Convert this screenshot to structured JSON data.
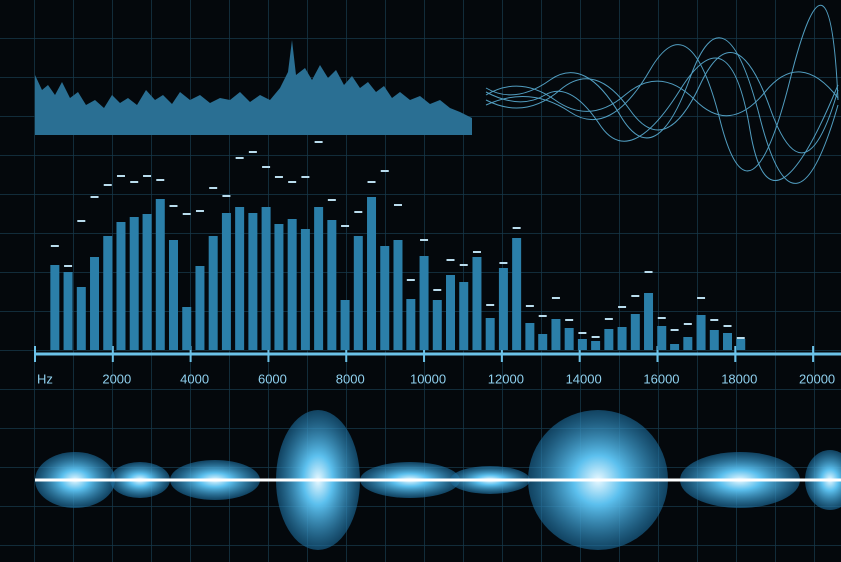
{
  "chart_data": {
    "type": "bar",
    "x": [
      510,
      850,
      1190,
      1530,
      1870,
      2210,
      2550,
      2880,
      3220,
      3560,
      3900,
      4240,
      4580,
      4920,
      5260,
      5600,
      5940,
      6270,
      6610,
      6950,
      7290,
      7630,
      7970,
      8310,
      8650,
      8990,
      9330,
      9660,
      10000,
      10340,
      10680,
      11020,
      11360,
      11700,
      12040,
      12380,
      12720,
      13050,
      13390,
      13730,
      14070,
      14410,
      14750,
      15090,
      15430,
      15770,
      16110,
      16440,
      16780,
      17120,
      17460,
      17800,
      18140
    ],
    "values": [
      85,
      78,
      63,
      93,
      114,
      128,
      133,
      136,
      151,
      110,
      43,
      84,
      114,
      137,
      143,
      137,
      143,
      126,
      131,
      121,
      143,
      130,
      50,
      114,
      153,
      104,
      110,
      51,
      94,
      50,
      75,
      68,
      93,
      32,
      82,
      112,
      27,
      16,
      31,
      22,
      11,
      9,
      21,
      23,
      36,
      57,
      24,
      6,
      13,
      35,
      20,
      17,
      11
    ],
    "peak_values": [
      104,
      84,
      129,
      153,
      165,
      174,
      168,
      174,
      170,
      144,
      136,
      139,
      162,
      154,
      192,
      198,
      183,
      173,
      168,
      173,
      208,
      150,
      124,
      138,
      168,
      179,
      145,
      70,
      110,
      60,
      90,
      85,
      98,
      45,
      87,
      122,
      44,
      34,
      52,
      30,
      17,
      13,
      31,
      43,
      54,
      78,
      32,
      20,
      26,
      52,
      30,
      24,
      12
    ],
    "color": "#2b7fa9",
    "peak_color": "#b9dced",
    "xlim": [
      0,
      20640
    ],
    "xticks": [
      {
        "value": 0,
        "label": "Hz"
      },
      2000,
      4000,
      6000,
      8000,
      10000,
      12000,
      14000,
      16000,
      18000,
      20000
    ],
    "ylim": [
      0,
      350
    ]
  }
}
